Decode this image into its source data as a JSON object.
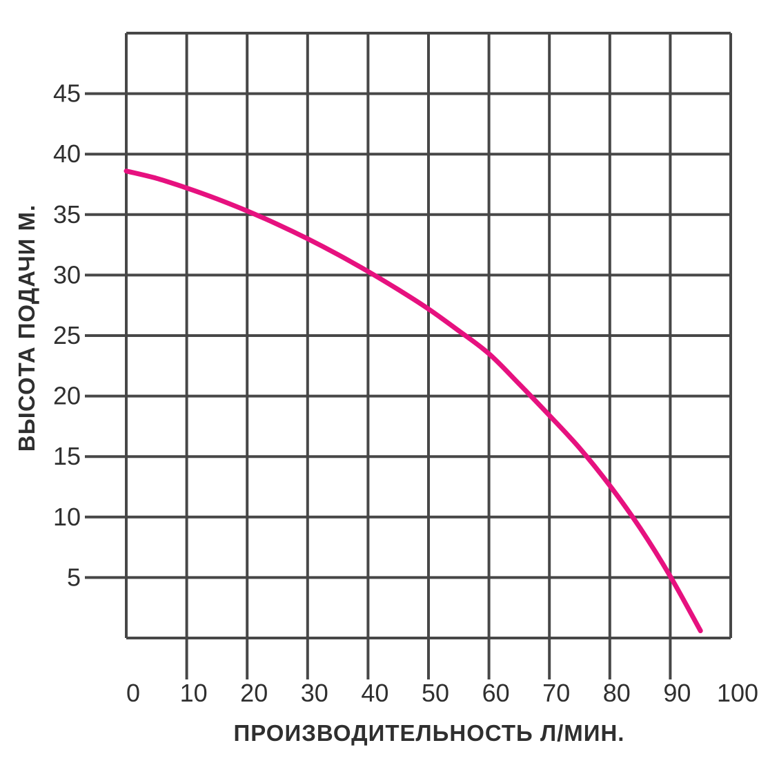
{
  "chart_data": {
    "type": "line",
    "title": "",
    "xlabel": "ПРОИЗВОДИТЕЛЬНОСТЬ Л/МИН.",
    "ylabel": "ВЫСОТА ПОДАЧИ М.",
    "xlim": [
      0,
      100
    ],
    "ylim": [
      0,
      50
    ],
    "grid": true,
    "x_ticks": [
      0,
      10,
      20,
      30,
      40,
      50,
      60,
      70,
      80,
      90,
      100
    ],
    "x_tick_labels": [
      "0",
      "10",
      "20",
      "30",
      "40",
      "50",
      "60",
      "70",
      "80",
      "90",
      "100"
    ],
    "y_ticks": [
      5,
      10,
      15,
      20,
      25,
      30,
      35,
      40,
      45
    ],
    "y_tick_labels": [
      "5",
      "10",
      "15",
      "20",
      "25",
      "30",
      "35",
      "40",
      "45"
    ],
    "series": [
      {
        "name": "",
        "color": "#e6117f",
        "x": [
          0,
          5,
          10,
          15,
          20,
          25,
          30,
          35,
          40,
          45,
          50,
          55,
          60,
          65,
          70,
          75,
          80,
          85,
          90,
          95
        ],
        "y": [
          38.6,
          38.0,
          37.2,
          36.3,
          35.3,
          34.2,
          33.0,
          31.7,
          30.3,
          28.8,
          27.2,
          25.4,
          23.5,
          21.0,
          18.4,
          15.7,
          12.6,
          9.1,
          5.1,
          0.6
        ]
      }
    ],
    "colors": {
      "grid": "#474747",
      "curve": "#e6117f",
      "text": "#2f2f2f"
    }
  }
}
